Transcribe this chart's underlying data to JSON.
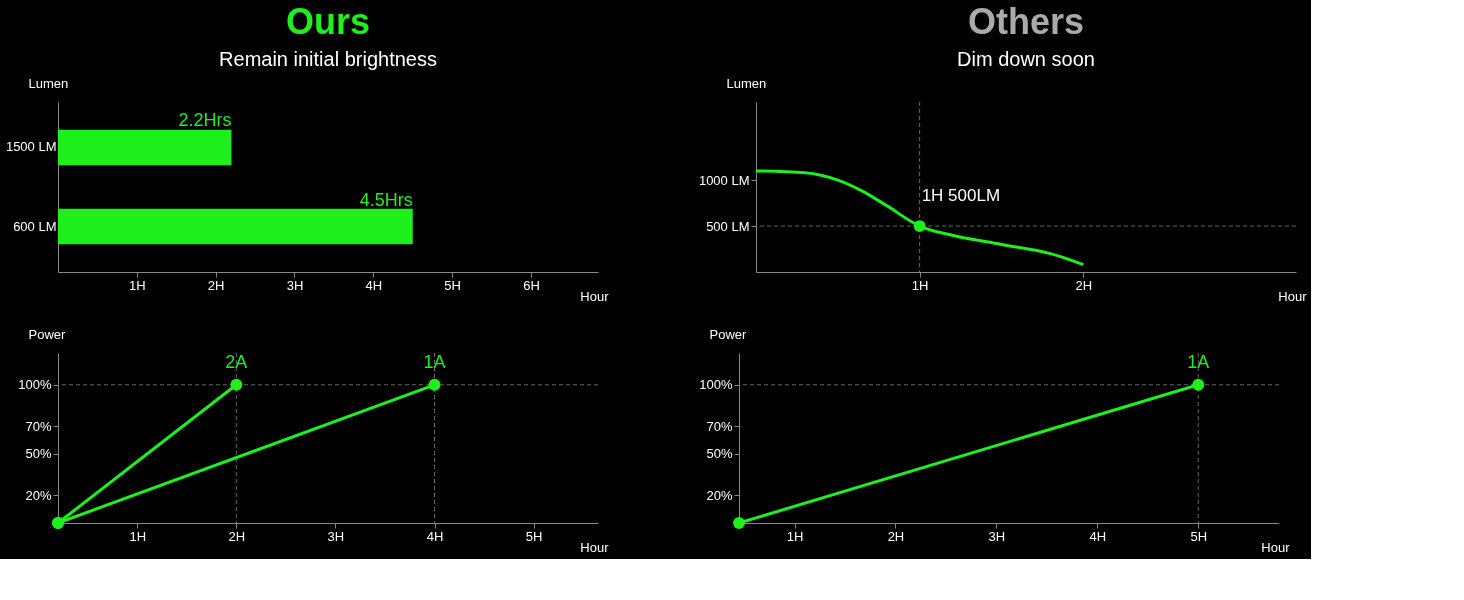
{
  "chart_data": [
    {
      "type": "bar",
      "orientation": "horizontal",
      "title": "Ours",
      "subtitle": "Remain initial brightness",
      "ylabel": "Lumen",
      "xlabel": "Hour",
      "categories": [
        "1500 LM",
        "600 LM"
      ],
      "values": [
        2.2,
        4.5
      ],
      "value_labels": [
        "2.2Hrs",
        "4.5Hrs"
      ],
      "color": "#1ef01e",
      "xlim": [
        0,
        6.85
      ],
      "xticks": [
        {
          "value": 1,
          "label": "1H"
        },
        {
          "value": 2,
          "label": "2H"
        },
        {
          "value": 3,
          "label": "3H"
        },
        {
          "value": 4,
          "label": "4H"
        },
        {
          "value": 5,
          "label": "5H"
        },
        {
          "value": 6,
          "label": "6H"
        }
      ],
      "grid": false
    },
    {
      "type": "line",
      "title": "Others",
      "subtitle": "Dim down soon",
      "ylabel": "Lumen",
      "xlabel": "Hour",
      "x": [
        0,
        0.3,
        0.5,
        0.65,
        0.8,
        1,
        1.2,
        1.5,
        1.8,
        2
      ],
      "series": [
        {
          "color": "#1ef01e",
          "values": [
            1100,
            1080,
            1000,
            880,
            720,
            500,
            400,
            300,
            200,
            80
          ]
        }
      ],
      "xlim": [
        0,
        3.3
      ],
      "ylim": [
        0,
        1850
      ],
      "xticks": [
        {
          "value": 1,
          "label": "1H"
        },
        {
          "value": 2,
          "label": "2H"
        }
      ],
      "yticks": [
        {
          "value": 500,
          "label": "500 LM"
        },
        {
          "value": 1000,
          "label": "1000 LM"
        }
      ],
      "annotations": [
        {
          "text": "1H 500LM",
          "x": 1,
          "y": 500
        }
      ],
      "ref_lines": [
        {
          "axis": "x",
          "value": 1,
          "line_style": "dashed"
        },
        {
          "axis": "y",
          "value": 500,
          "line_style": "dashed"
        }
      ],
      "grid": false
    },
    {
      "type": "line",
      "ylabel": "Power",
      "xlabel": "Hour",
      "series": [
        {
          "name": "2A",
          "color": "#1ef01e",
          "x": [
            0.2,
            2
          ],
          "values": [
            0,
            100
          ]
        },
        {
          "name": "1A",
          "color": "#1ef01e",
          "x": [
            0.2,
            4
          ],
          "values": [
            0,
            100
          ]
        }
      ],
      "xlim": [
        0.2,
        5.65
      ],
      "ylim": [
        0,
        123
      ],
      "xticks": [
        {
          "value": 1,
          "label": "1H"
        },
        {
          "value": 2,
          "label": "2H"
        },
        {
          "value": 3,
          "label": "3H"
        },
        {
          "value": 4,
          "label": "4H"
        },
        {
          "value": 5,
          "label": "5H"
        }
      ],
      "yticks": [
        {
          "value": 20,
          "label": "20%"
        },
        {
          "value": 50,
          "label": "50%"
        },
        {
          "value": 70,
          "label": "70%"
        },
        {
          "value": 100,
          "label": "100%"
        }
      ],
      "ref_lines": [
        {
          "axis": "y",
          "value": 100,
          "line_style": "dashed"
        },
        {
          "axis": "x",
          "value": 2,
          "line_style": "dashed"
        },
        {
          "axis": "x",
          "value": 4,
          "line_style": "dashed"
        }
      ],
      "marker": "circle",
      "grid": false
    },
    {
      "type": "line",
      "ylabel": "Power",
      "xlabel": "Hour",
      "series": [
        {
          "name": "1A",
          "color": "#1ef01e",
          "x": [
            0.45,
            5
          ],
          "values": [
            0,
            100
          ]
        }
      ],
      "xlim": [
        0.45,
        5.8
      ],
      "ylim": [
        0,
        123
      ],
      "xticks": [
        {
          "value": 1,
          "label": "1H"
        },
        {
          "value": 2,
          "label": "2H"
        },
        {
          "value": 3,
          "label": "3H"
        },
        {
          "value": 4,
          "label": "4H"
        },
        {
          "value": 5,
          "label": "5H"
        }
      ],
      "yticks": [
        {
          "value": 20,
          "label": "20%"
        },
        {
          "value": 50,
          "label": "50%"
        },
        {
          "value": 70,
          "label": "70%"
        },
        {
          "value": 100,
          "label": "100%"
        }
      ],
      "ref_lines": [
        {
          "axis": "y",
          "value": 100,
          "line_style": "dashed"
        },
        {
          "axis": "x",
          "value": 5,
          "line_style": "dashed"
        }
      ],
      "marker": "circle",
      "grid": false
    }
  ]
}
